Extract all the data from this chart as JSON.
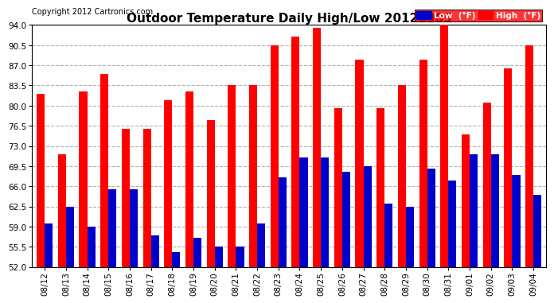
{
  "title": "Outdoor Temperature Daily High/Low 20120905",
  "copyright": "Copyright 2012 Cartronics.com",
  "dates": [
    "08/12",
    "08/13",
    "08/14",
    "08/15",
    "08/16",
    "08/17",
    "08/18",
    "08/19",
    "08/20",
    "08/21",
    "08/22",
    "08/23",
    "08/24",
    "08/25",
    "08/26",
    "08/27",
    "08/28",
    "08/29",
    "08/30",
    "08/31",
    "09/01",
    "09/02",
    "09/03",
    "09/04"
  ],
  "highs": [
    82.0,
    71.5,
    82.5,
    85.5,
    76.0,
    76.0,
    81.0,
    82.5,
    77.5,
    83.5,
    83.5,
    90.5,
    92.0,
    93.5,
    79.5,
    88.0,
    79.5,
    83.5,
    88.0,
    94.0,
    75.0,
    80.5,
    86.5,
    90.5
  ],
  "lows": [
    59.5,
    62.5,
    59.0,
    65.5,
    65.5,
    57.5,
    54.5,
    57.0,
    55.5,
    55.5,
    59.5,
    67.5,
    71.0,
    71.0,
    68.5,
    69.5,
    63.0,
    62.5,
    69.0,
    67.0,
    71.5,
    71.5,
    68.0,
    64.5
  ],
  "ymin": 52.0,
  "ymax": 94.0,
  "yticks": [
    52.0,
    55.5,
    59.0,
    62.5,
    66.0,
    69.5,
    73.0,
    76.5,
    80.0,
    83.5,
    87.0,
    90.5,
    94.0
  ],
  "high_color": "#ff0000",
  "low_color": "#0000cc",
  "background_color": "#ffffff",
  "grid_color": "#b0b0b0",
  "title_fontsize": 11,
  "copyright_fontsize": 7,
  "legend_low_label": "Low  (°F)",
  "legend_high_label": "High  (°F)",
  "bar_width": 0.38
}
